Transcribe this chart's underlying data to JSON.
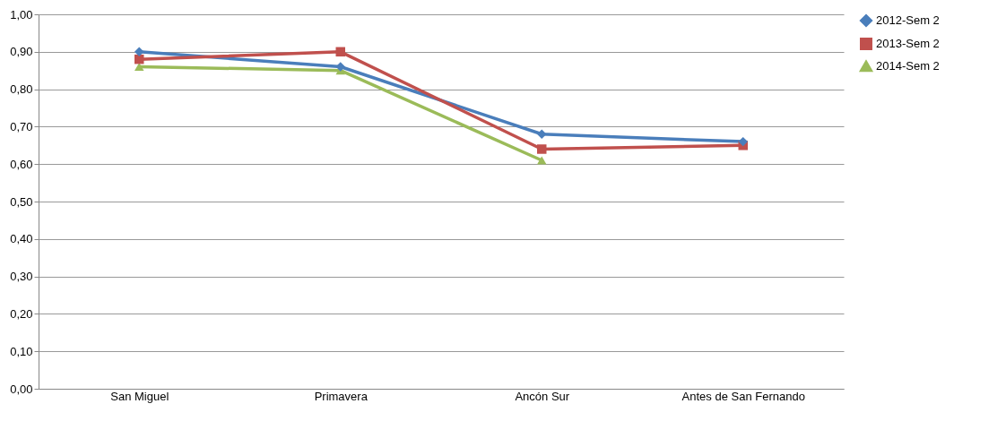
{
  "chart_data": {
    "type": "line",
    "categories": [
      "San Miguel",
      "Primavera",
      "Ancón Sur",
      "Antes de San Fernando"
    ],
    "series": [
      {
        "name": "2012-Sem 2",
        "color": "#4a7ebb",
        "marker": "diamond",
        "values": [
          0.9,
          0.86,
          0.68,
          0.66
        ]
      },
      {
        "name": "2013-Sem 2",
        "color": "#c0504d",
        "marker": "square",
        "values": [
          0.88,
          0.9,
          0.64,
          0.65
        ]
      },
      {
        "name": "2014-Sem 2",
        "color": "#9bbb59",
        "marker": "triangle",
        "values": [
          0.86,
          0.85,
          0.61,
          null
        ]
      }
    ],
    "ylim": [
      0,
      1
    ],
    "yticks": [
      {
        "value": 0,
        "label": "0,00"
      },
      {
        "value": 0.1,
        "label": "0,10"
      },
      {
        "value": 0.2,
        "label": "0,20"
      },
      {
        "value": 0.3,
        "label": "0,30"
      },
      {
        "value": 0.4,
        "label": "0,40"
      },
      {
        "value": 0.5,
        "label": "0,50"
      },
      {
        "value": 0.6,
        "label": "0,60"
      },
      {
        "value": 0.7,
        "label": "0,70"
      },
      {
        "value": 0.8,
        "label": "0,80"
      },
      {
        "value": 0.9,
        "label": "0,90"
      },
      {
        "value": 1,
        "label": "1,00"
      }
    ],
    "grid": "y",
    "legend": "right",
    "line_style": "solid"
  }
}
